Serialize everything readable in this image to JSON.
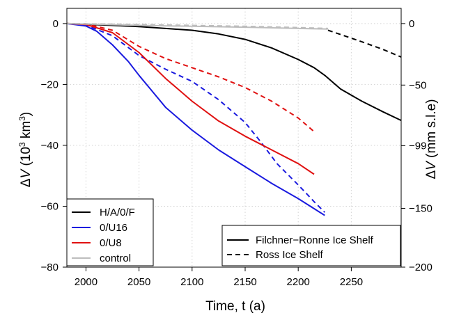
{
  "chart_data": {
    "type": "line",
    "xlabel": "Time, t (a)",
    "ylabel_left": {
      "prefix": "Δ",
      "var": "V",
      "rest": " (10",
      "sup": "3",
      "unit": " km",
      "sup2": "3",
      "close": ")"
    },
    "ylabel_right": {
      "prefix": "Δ",
      "var": "V",
      "rest": " (mm s.l.e)"
    },
    "xlim": [
      1982,
      2297
    ],
    "ylim": [
      -80,
      5
    ],
    "grid": true,
    "x_ticks": [
      2000,
      2050,
      2100,
      2150,
      2200,
      2250
    ],
    "y_ticks_left": [
      0,
      -20,
      -40,
      -60,
      -80
    ],
    "y_ticks_left_labels": [
      "0",
      "−20",
      "−40",
      "−60",
      "−80"
    ],
    "y_ticks_right": [
      {
        "at": 0,
        "label": "0"
      },
      {
        "at": -20.2,
        "label": "−50"
      },
      {
        "at": -40.1,
        "label": "−99"
      },
      {
        "at": -60.7,
        "label": "−150"
      },
      {
        "at": -80,
        "label": "−200"
      }
    ],
    "legend_models": {
      "placement": "bottom-left",
      "entries": [
        {
          "label": "H/A/0/F",
          "color": "#000000"
        },
        {
          "label": "0/U16",
          "color": "#1a1adf"
        },
        {
          "label": "0/U8",
          "color": "#e01010"
        },
        {
          "label": "control",
          "color": "#bdbdbd"
        }
      ]
    },
    "legend_shelves": {
      "placement": "bottom-right",
      "entries": [
        {
          "label": "Filchner−Ronne Ice Shelf",
          "dash": "solid"
        },
        {
          "label": "Ross Ice Shelf",
          "dash": "dashed"
        }
      ]
    },
    "series": [
      {
        "name": "H/A/0/F",
        "shelf": "Filchner−Ronne Ice Shelf",
        "color": "#000000",
        "dash": "solid",
        "x": [
          1982,
          2000,
          2025,
          2050,
          2075,
          2100,
          2125,
          2150,
          2175,
          2200,
          2215,
          2225,
          2240,
          2260,
          2280,
          2297
        ],
        "y": [
          0,
          -0.2,
          -0.6,
          -1.0,
          -1.6,
          -2.2,
          -3.4,
          -5.2,
          -8.0,
          -11.8,
          -14.5,
          -17.0,
          -21.5,
          -25.5,
          -29.0,
          -31.8
        ]
      },
      {
        "name": "H/A/0/F",
        "shelf": "Ross Ice Shelf",
        "color": "#000000",
        "dash": "dashed",
        "x": [
          2228,
          2240,
          2260,
          2280,
          2297
        ],
        "y": [
          -2.2,
          -3.6,
          -6.0,
          -8.5,
          -11.0
        ]
      },
      {
        "name": "0/U16",
        "shelf": "Filchner−Ronne Ice Shelf",
        "color": "#1a1adf",
        "dash": "solid",
        "x": [
          1982,
          2000,
          2010,
          2025,
          2040,
          2050,
          2075,
          2100,
          2125,
          2150,
          2175,
          2200,
          2225
        ],
        "y": [
          0,
          -0.8,
          -2.5,
          -7.0,
          -12.5,
          -17.0,
          -27.5,
          -35.0,
          -41.5,
          -47.0,
          -52.5,
          -57.5,
          -63.0
        ]
      },
      {
        "name": "0/U16",
        "shelf": "Ross Ice Shelf",
        "color": "#1a1adf",
        "dash": "dashed",
        "x": [
          1982,
          2000,
          2025,
          2050,
          2075,
          2100,
          2125,
          2150,
          2165,
          2180,
          2200,
          2215,
          2225
        ],
        "y": [
          0,
          -0.5,
          -4.0,
          -10.5,
          -15.0,
          -19.0,
          -25.0,
          -32.5,
          -39.0,
          -46.0,
          -53.0,
          -58.5,
          -62.0
        ]
      },
      {
        "name": "0/U8",
        "shelf": "Filchner−Ronne Ice Shelf",
        "color": "#e01010",
        "dash": "solid",
        "x": [
          1982,
          2000,
          2025,
          2050,
          2075,
          2100,
          2125,
          2150,
          2175,
          2200,
          2215
        ],
        "y": [
          0,
          -0.3,
          -3.0,
          -9.5,
          -18.0,
          -25.5,
          -32.0,
          -37.0,
          -41.5,
          -46.0,
          -49.5
        ]
      },
      {
        "name": "0/U8",
        "shelf": "Ross Ice Shelf",
        "color": "#e01010",
        "dash": "dashed",
        "x": [
          1982,
          2000,
          2025,
          2050,
          2075,
          2100,
          2125,
          2150,
          2175,
          2200,
          2215
        ],
        "y": [
          0,
          -0.1,
          -2.2,
          -7.5,
          -11.5,
          -14.5,
          -17.5,
          -21.0,
          -25.5,
          -31.0,
          -35.5
        ]
      },
      {
        "name": "control",
        "shelf": "Filchner−Ronne Ice Shelf",
        "color": "#bdbdbd",
        "dash": "solid",
        "x": [
          1982,
          2050,
          2100,
          2150,
          2200,
          2228
        ],
        "y": [
          0,
          -0.6,
          -0.9,
          -1.2,
          -1.6,
          -1.8
        ]
      },
      {
        "name": "control",
        "shelf": "Ross Ice Shelf",
        "color": "#bdbdbd",
        "dash": "dashed",
        "x": [
          1982,
          2050,
          2100,
          2150,
          2200,
          2228
        ],
        "y": [
          0,
          -0.3,
          -0.6,
          -0.9,
          -1.3,
          -1.6
        ]
      }
    ]
  }
}
